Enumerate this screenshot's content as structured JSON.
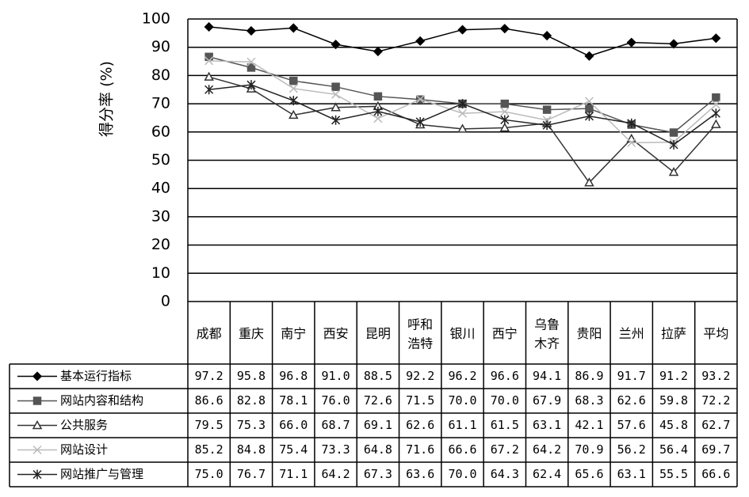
{
  "chart_data": {
    "type": "line",
    "y_label": "得分率 (%)",
    "categories": [
      "成都",
      "重庆",
      "南宁",
      "西安",
      "昆明",
      "呼和浩特",
      "银川",
      "西宁",
      "乌鲁木齐",
      "贵阳",
      "兰州",
      "拉萨",
      "平均"
    ],
    "ylim": [
      0,
      100
    ],
    "yticks": [
      0,
      10,
      20,
      30,
      40,
      50,
      60,
      70,
      80,
      90,
      100
    ],
    "grid": true,
    "series": [
      {
        "name": "基本运行指标",
        "color": "#000000",
        "marker": "diamond",
        "values": [
          97.2,
          95.8,
          96.8,
          91.0,
          88.5,
          92.2,
          96.2,
          96.6,
          94.1,
          86.9,
          91.7,
          91.2,
          93.2
        ],
        "value_labels": [
          "97.2",
          "95.8",
          "96.8",
          "91.0",
          "88.5",
          "92.2",
          "96.2",
          "96.6",
          "94.1",
          "86.9",
          "91.7",
          "91.2",
          "93.2"
        ]
      },
      {
        "name": "网站内容和结构",
        "color": "#555555",
        "marker": "square",
        "values": [
          86.6,
          82.8,
          78.1,
          76.0,
          72.6,
          71.5,
          70.0,
          70.0,
          67.9,
          68.3,
          62.6,
          59.8,
          72.2
        ],
        "value_labels": [
          "86.6",
          "82.8",
          "78.1",
          "76.0",
          "72.6",
          "71.5",
          "70.0",
          "70.0",
          "67.9",
          "68.3",
          "62.6",
          "59.8",
          "72.2"
        ]
      },
      {
        "name": "公共服务",
        "color": "#333333",
        "marker": "triangle",
        "values": [
          79.5,
          75.3,
          66.0,
          68.7,
          69.1,
          62.6,
          61.1,
          61.5,
          63.1,
          42.1,
          57.6,
          45.8,
          62.7
        ],
        "value_labels": [
          "79.5",
          "75.3",
          "66.0",
          "68.7",
          "69.1",
          "62.6",
          "61.1",
          "61.5",
          "63.1",
          "42.1",
          "57.6",
          "45.8",
          "62.7"
        ]
      },
      {
        "name": "网站设计",
        "color": "#bbbbbb",
        "marker": "x",
        "values": [
          85.2,
          84.8,
          75.4,
          73.3,
          64.8,
          71.6,
          66.6,
          67.2,
          64.2,
          70.9,
          56.2,
          56.4,
          69.7
        ],
        "value_labels": [
          "85.2",
          "84.8",
          "75.4",
          "73.3",
          "64.8",
          "71.6",
          "66.6",
          "67.2",
          "64.2",
          "70.9",
          "56.2",
          "56.4",
          "69.7"
        ]
      },
      {
        "name": "网站推广与管理",
        "color": "#222222",
        "marker": "star",
        "values": [
          75.0,
          76.7,
          71.1,
          64.2,
          67.3,
          63.6,
          70.0,
          64.3,
          62.4,
          65.6,
          63.1,
          55.5,
          66.6
        ],
        "value_labels": [
          "75.0",
          "76.7",
          "71.1",
          "64.2",
          "67.3",
          "63.6",
          "70.0",
          "64.3",
          "62.4",
          "65.6",
          "63.1",
          "55.5",
          "66.6"
        ]
      }
    ]
  }
}
